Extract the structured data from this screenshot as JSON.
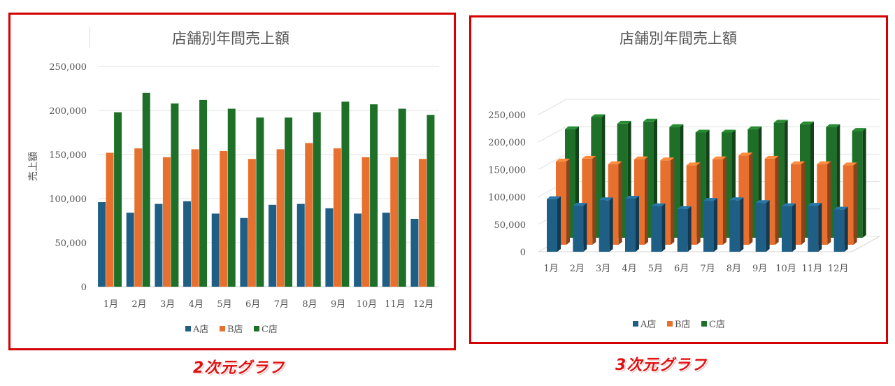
{
  "captions": {
    "chart_2d": "2次元グラフ",
    "chart_3d": "3次元グラフ"
  },
  "colors": {
    "A": "#1f5f86",
    "B": "#e8702f",
    "C": "#1e7028",
    "frame": "#d40000",
    "caption": "#e01010"
  },
  "chart_data": [
    {
      "type": "bar",
      "title": "店舗別年間売上額",
      "ylabel": "売上額",
      "xlabel": "",
      "categories": [
        "1月",
        "2月",
        "3月",
        "4月",
        "5月",
        "6月",
        "7月",
        "8月",
        "9月",
        "10月",
        "11月",
        "12月"
      ],
      "series": [
        {
          "name": "A店",
          "values": [
            96000,
            84000,
            94000,
            97000,
            83000,
            78000,
            93000,
            94000,
            89000,
            83000,
            84000,
            77000
          ]
        },
        {
          "name": "B店",
          "values": [
            152000,
            157000,
            147000,
            156000,
            154000,
            145000,
            156000,
            163000,
            157000,
            147000,
            147000,
            145000
          ]
        },
        {
          "name": "C店",
          "values": [
            198000,
            220000,
            208000,
            212000,
            202000,
            192000,
            192000,
            198000,
            210000,
            207000,
            202000,
            195000
          ]
        }
      ],
      "ylim": [
        0,
        250000
      ],
      "yticks": [
        "0",
        "50,000",
        "100,000",
        "150,000",
        "200,000",
        "250,000"
      ],
      "grid": true,
      "legend": "bottom"
    },
    {
      "type": "bar",
      "title": "店舗別年間売上額",
      "ylabel": "",
      "xlabel": "",
      "style": "3d",
      "categories": [
        "1月",
        "2月",
        "3月",
        "4月",
        "5月",
        "6月",
        "7月",
        "8月",
        "9月",
        "10月",
        "11月",
        "12月"
      ],
      "series": [
        {
          "name": "A店",
          "values": [
            96000,
            84000,
            94000,
            97000,
            83000,
            78000,
            93000,
            94000,
            89000,
            83000,
            84000,
            77000
          ]
        },
        {
          "name": "B店",
          "values": [
            152000,
            157000,
            147000,
            156000,
            154000,
            145000,
            156000,
            163000,
            157000,
            147000,
            147000,
            145000
          ]
        },
        {
          "name": "C店",
          "values": [
            198000,
            220000,
            208000,
            212000,
            202000,
            192000,
            192000,
            198000,
            210000,
            207000,
            202000,
            195000
          ]
        }
      ],
      "ylim": [
        0,
        250000
      ],
      "yticks": [
        "0",
        "50,000",
        "100,000",
        "150,000",
        "200,000",
        "250,000"
      ],
      "grid": true,
      "legend": "bottom"
    }
  ]
}
